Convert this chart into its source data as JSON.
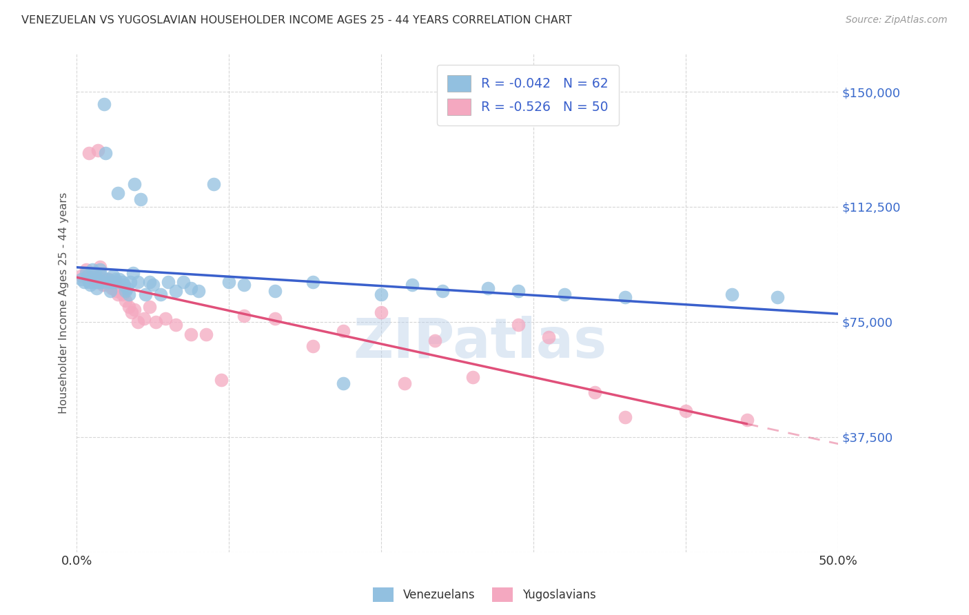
{
  "title": "VENEZUELAN VS YUGOSLAVIAN HOUSEHOLDER INCOME AGES 25 - 44 YEARS CORRELATION CHART",
  "source": "Source: ZipAtlas.com",
  "ylabel": "Householder Income Ages 25 - 44 years",
  "xmin": 0.0,
  "xmax": 0.5,
  "ymin": 0,
  "ymax": 162500,
  "yticks": [
    0,
    37500,
    75000,
    112500,
    150000
  ],
  "ytick_labels": [
    "",
    "$37,500",
    "$75,000",
    "$112,500",
    "$150,000"
  ],
  "xticks": [
    0.0,
    0.1,
    0.2,
    0.3,
    0.4,
    0.5
  ],
  "xtick_labels": [
    "0.0%",
    "",
    "",
    "",
    "",
    "50.0%"
  ],
  "venezuelan_color": "#92c0e0",
  "yugoslavian_color": "#f4a8c0",
  "venezuelan_line_color": "#3a60cc",
  "yugoslavian_line_color": "#e0507a",
  "venezuelan_R": -0.042,
  "venezuelan_N": 62,
  "yugoslavian_R": -0.526,
  "yugoslavian_N": 50,
  "watermark": "ZIPatlas",
  "legend_label_ven": "Venezuelans",
  "legend_label_yug": "Yugoslavians",
  "venezuelan_x": [
    0.003,
    0.005,
    0.006,
    0.007,
    0.008,
    0.009,
    0.01,
    0.01,
    0.011,
    0.012,
    0.013,
    0.013,
    0.014,
    0.015,
    0.015,
    0.016,
    0.017,
    0.018,
    0.019,
    0.02,
    0.021,
    0.022,
    0.023,
    0.024,
    0.025,
    0.026,
    0.027,
    0.028,
    0.03,
    0.031,
    0.032,
    0.033,
    0.034,
    0.035,
    0.037,
    0.038,
    0.04,
    0.042,
    0.045,
    0.048,
    0.05,
    0.055,
    0.06,
    0.065,
    0.07,
    0.075,
    0.08,
    0.09,
    0.1,
    0.11,
    0.13,
    0.155,
    0.175,
    0.2,
    0.22,
    0.24,
    0.27,
    0.29,
    0.32,
    0.36,
    0.43,
    0.46
  ],
  "venezuelan_y": [
    89000,
    88000,
    91000,
    90000,
    88000,
    87000,
    89000,
    92000,
    88000,
    91000,
    88000,
    86000,
    89000,
    88000,
    92000,
    90000,
    88000,
    146000,
    130000,
    89000,
    88000,
    85000,
    88000,
    90000,
    89000,
    88000,
    117000,
    89000,
    88000,
    87000,
    85000,
    86000,
    84000,
    88000,
    91000,
    120000,
    88000,
    115000,
    84000,
    88000,
    87000,
    84000,
    88000,
    85000,
    88000,
    86000,
    85000,
    120000,
    88000,
    87000,
    85000,
    88000,
    55000,
    84000,
    87000,
    85000,
    86000,
    85000,
    84000,
    83000,
    84000,
    83000
  ],
  "yugoslavian_x": [
    0.003,
    0.006,
    0.008,
    0.01,
    0.011,
    0.012,
    0.013,
    0.014,
    0.015,
    0.016,
    0.017,
    0.018,
    0.019,
    0.02,
    0.021,
    0.022,
    0.023,
    0.024,
    0.025,
    0.026,
    0.027,
    0.028,
    0.03,
    0.032,
    0.034,
    0.036,
    0.038,
    0.04,
    0.044,
    0.048,
    0.052,
    0.058,
    0.065,
    0.075,
    0.085,
    0.095,
    0.11,
    0.13,
    0.155,
    0.175,
    0.2,
    0.215,
    0.235,
    0.26,
    0.29,
    0.31,
    0.34,
    0.36,
    0.4,
    0.44
  ],
  "yugoslavian_y": [
    90000,
    92000,
    130000,
    91000,
    89000,
    90000,
    88000,
    131000,
    93000,
    89000,
    87000,
    87000,
    89000,
    88000,
    89000,
    87000,
    86000,
    86000,
    88000,
    85000,
    84000,
    86000,
    84000,
    82000,
    80000,
    78000,
    79000,
    75000,
    76000,
    80000,
    75000,
    76000,
    74000,
    71000,
    71000,
    56000,
    77000,
    76000,
    67000,
    72000,
    78000,
    55000,
    69000,
    57000,
    74000,
    70000,
    52000,
    44000,
    46000,
    43000
  ]
}
